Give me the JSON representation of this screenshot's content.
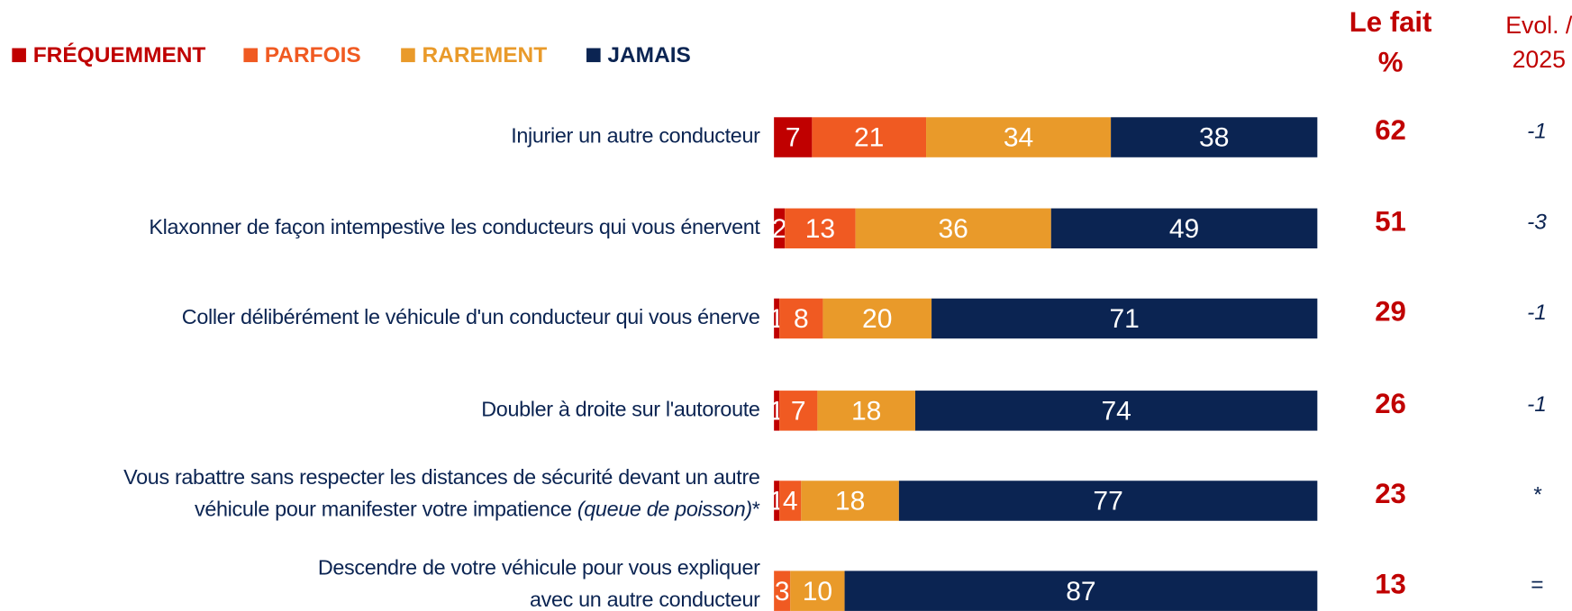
{
  "chart_data": {
    "type": "stacked-bar",
    "categories": [
      [
        "Injurier un autre conducteur"
      ],
      [
        "Klaxonner de façon intempestive les conducteurs qui vous énervent"
      ],
      [
        "Coller délibérément le véhicule d'un conducteur qui vous énerve"
      ],
      [
        "Doubler à droite sur l'autoroute"
      ],
      [
        "Vous rabattre sans respecter les distances de sécurité devant un autre",
        "véhicule pour manifester votre impatience (queue de poisson)*"
      ],
      [
        "Descendre de votre véhicule pour vous expliquer",
        "avec un autre conducteur"
      ]
    ],
    "series": [
      {
        "name": "FRÉQUEMMENT",
        "color": "#c00000",
        "values": [
          7,
          2,
          1,
          1,
          1,
          null
        ]
      },
      {
        "name": "PARFOIS",
        "color": "#f05a22",
        "values": [
          21,
          13,
          8,
          7,
          4,
          3
        ]
      },
      {
        "name": "RAREMENT",
        "color": "#e99a2a",
        "values": [
          34,
          36,
          20,
          18,
          18,
          10
        ]
      },
      {
        "name": "JAMAIS",
        "color": "#0b2452",
        "values": [
          38,
          49,
          71,
          74,
          77,
          87
        ]
      }
    ],
    "xlim": [
      0,
      100
    ],
    "total": {
      "header": [
        "Le fait",
        "%"
      ],
      "color": "#c00000",
      "values": [
        62,
        51,
        29,
        26,
        23,
        13
      ]
    },
    "evol": {
      "header": [
        "Evol. /",
        "2025"
      ],
      "values": [
        -1,
        -3,
        -1,
        -1,
        null,
        0
      ],
      "value_labels": [
        "-1",
        "-3",
        "-1",
        "-1",
        "*",
        "="
      ]
    }
  }
}
